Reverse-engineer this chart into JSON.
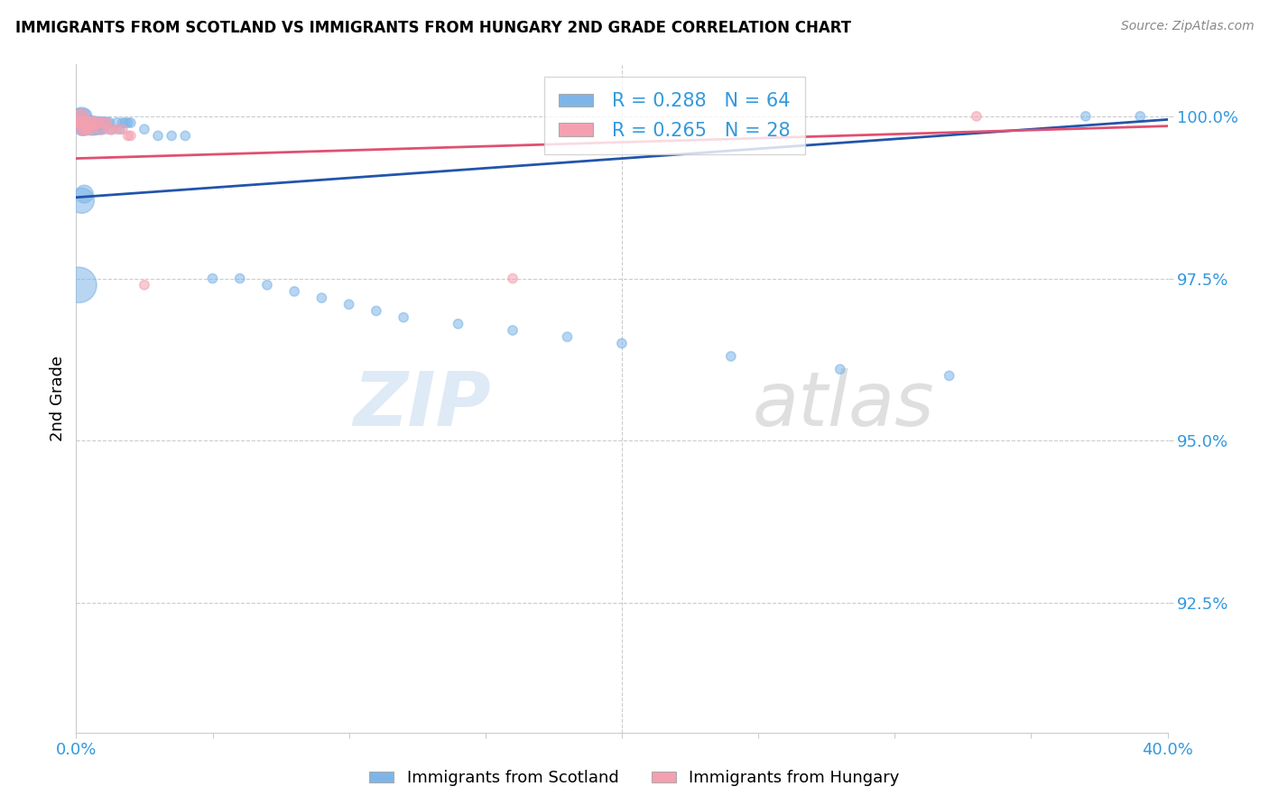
{
  "title": "IMMIGRANTS FROM SCOTLAND VS IMMIGRANTS FROM HUNGARY 2ND GRADE CORRELATION CHART",
  "source": "Source: ZipAtlas.com",
  "ylabel": "2nd Grade",
  "xlim": [
    0.0,
    0.4
  ],
  "ylim": [
    0.905,
    1.008
  ],
  "yticks": [
    0.925,
    0.95,
    0.975,
    1.0
  ],
  "ytick_labels": [
    "92.5%",
    "95.0%",
    "97.5%",
    "100.0%"
  ],
  "xticks": [
    0.0,
    0.05,
    0.1,
    0.15,
    0.2,
    0.25,
    0.3,
    0.35,
    0.4
  ],
  "scotland_color": "#7EB5E8",
  "hungary_color": "#F4A0B0",
  "scotland_line_color": "#2255AA",
  "hungary_line_color": "#E05070",
  "scotland_R": 0.288,
  "scotland_N": 64,
  "hungary_R": 0.265,
  "hungary_N": 28,
  "legend_label_scotland": "Immigrants from Scotland",
  "legend_label_hungary": "Immigrants from Hungary",
  "watermark_zip": "ZIP",
  "watermark_atlas": "atlas",
  "scotland_x": [
    0.001,
    0.001,
    0.001,
    0.001,
    0.001,
    0.002,
    0.002,
    0.002,
    0.002,
    0.002,
    0.003,
    0.003,
    0.003,
    0.003,
    0.004,
    0.004,
    0.004,
    0.005,
    0.005,
    0.005,
    0.006,
    0.006,
    0.006,
    0.007,
    0.007,
    0.008,
    0.008,
    0.009,
    0.009,
    0.01,
    0.01,
    0.011,
    0.012,
    0.013,
    0.015,
    0.016,
    0.017,
    0.018,
    0.019,
    0.02,
    0.001,
    0.002,
    0.003,
    0.025,
    0.03,
    0.035,
    0.04,
    0.05,
    0.06,
    0.07,
    0.08,
    0.09,
    0.1,
    0.11,
    0.12,
    0.14,
    0.16,
    0.18,
    0.2,
    0.24,
    0.28,
    0.32,
    0.37,
    0.39
  ],
  "scotland_y": [
    1.0,
    1.0,
    1.0,
    0.999,
    0.999,
    1.0,
    0.999,
    0.999,
    0.998,
    0.998,
    1.0,
    0.999,
    0.998,
    0.998,
    0.999,
    0.999,
    0.998,
    0.999,
    0.999,
    0.998,
    0.999,
    0.998,
    0.998,
    0.999,
    0.998,
    0.999,
    0.998,
    0.999,
    0.998,
    0.999,
    0.998,
    0.999,
    0.999,
    0.998,
    0.999,
    0.998,
    0.999,
    0.999,
    0.999,
    0.999,
    0.974,
    0.987,
    0.988,
    0.998,
    0.997,
    0.997,
    0.997,
    0.975,
    0.975,
    0.974,
    0.973,
    0.972,
    0.971,
    0.97,
    0.969,
    0.968,
    0.967,
    0.966,
    0.965,
    0.963,
    0.961,
    0.96,
    1.0,
    1.0
  ],
  "scotland_size": [
    150,
    120,
    100,
    80,
    60,
    200,
    160,
    130,
    100,
    80,
    150,
    120,
    100,
    80,
    130,
    100,
    80,
    120,
    100,
    80,
    110,
    90,
    70,
    100,
    80,
    90,
    70,
    85,
    65,
    80,
    60,
    75,
    70,
    65,
    60,
    55,
    55,
    55,
    55,
    55,
    800,
    400,
    200,
    55,
    55,
    55,
    55,
    55,
    55,
    55,
    55,
    55,
    55,
    55,
    55,
    55,
    55,
    55,
    55,
    55,
    55,
    55,
    55,
    55
  ],
  "hungary_x": [
    0.001,
    0.001,
    0.001,
    0.002,
    0.002,
    0.002,
    0.003,
    0.003,
    0.004,
    0.004,
    0.005,
    0.005,
    0.006,
    0.006,
    0.007,
    0.008,
    0.009,
    0.01,
    0.011,
    0.012,
    0.013,
    0.015,
    0.017,
    0.019,
    0.02,
    0.025,
    0.16,
    0.33
  ],
  "hungary_y": [
    1.0,
    0.999,
    0.999,
    1.0,
    0.999,
    0.998,
    0.999,
    0.998,
    0.999,
    0.998,
    0.999,
    0.998,
    0.999,
    0.998,
    0.999,
    0.999,
    0.998,
    0.999,
    0.999,
    0.998,
    0.998,
    0.998,
    0.998,
    0.997,
    0.997,
    0.974,
    0.975,
    1.0
  ],
  "hungary_size": [
    100,
    80,
    60,
    130,
    100,
    80,
    110,
    80,
    100,
    70,
    90,
    65,
    85,
    60,
    80,
    75,
    70,
    65,
    65,
    60,
    60,
    55,
    55,
    55,
    55,
    55,
    55,
    55
  ],
  "scotland_trend_x": [
    0.0,
    0.4
  ],
  "scotland_trend_y": [
    0.9875,
    0.9995
  ],
  "hungary_trend_x": [
    0.0,
    0.4
  ],
  "hungary_trend_y": [
    0.9935,
    0.9985
  ]
}
